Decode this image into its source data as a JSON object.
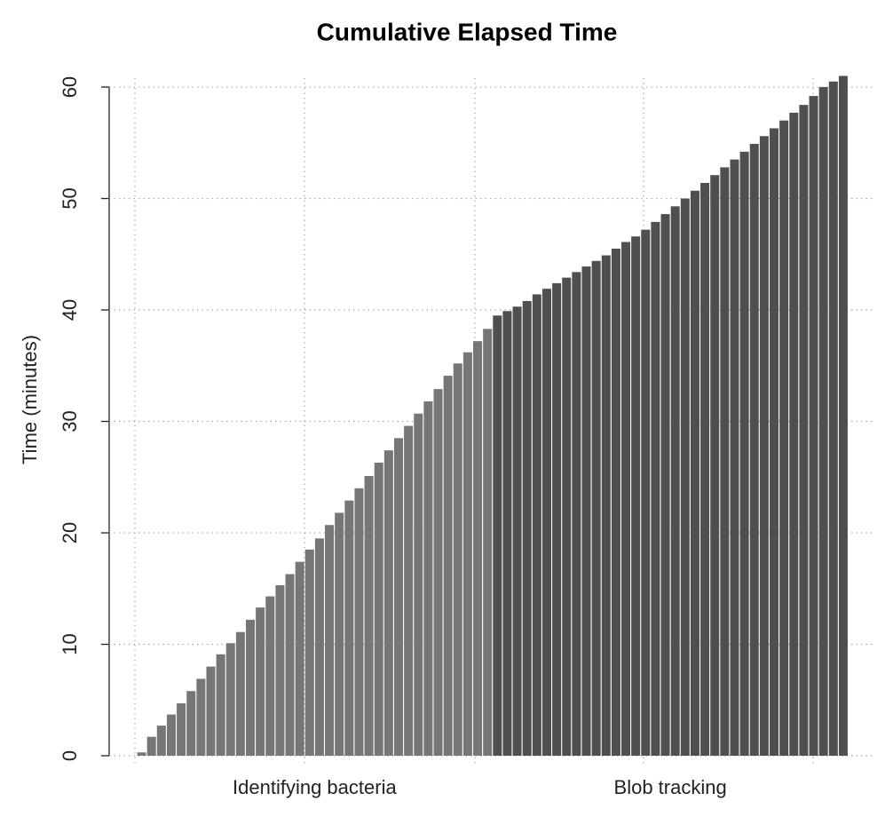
{
  "chart_data": {
    "type": "bar",
    "title": "Cumulative Elapsed Time",
    "y_label": "Time (minutes)",
    "categories": [
      null,
      null,
      null,
      null,
      null,
      null,
      null,
      null,
      null,
      null,
      null,
      null,
      null,
      null,
      null,
      null,
      null,
      null,
      null,
      null,
      null,
      null,
      null,
      null,
      null,
      null,
      null,
      null,
      null,
      null,
      null,
      null,
      null,
      null,
      null,
      null,
      null,
      null,
      null,
      null,
      null,
      null,
      null,
      null,
      null,
      null,
      null,
      null,
      null,
      null,
      null,
      null,
      null,
      null,
      null,
      null,
      null,
      null,
      null,
      null,
      null,
      null,
      null,
      null,
      null,
      null,
      null,
      null,
      null,
      null,
      null,
      null
    ],
    "series": [
      {
        "name": "Identifying bacteria",
        "color": "#767676",
        "values": [
          0.3,
          1.7,
          2.7,
          3.7,
          4.7,
          5.8,
          6.9,
          8.0,
          9.1,
          10.1,
          11.1,
          12.2,
          13.3,
          14.3,
          15.3,
          16.3,
          17.4,
          18.5,
          19.5,
          20.7,
          21.8,
          22.9,
          24.0,
          25.1,
          26.3,
          27.4,
          28.5,
          29.6,
          30.7,
          31.8,
          32.9,
          34.1,
          35.2,
          36.2,
          37.2,
          38.3,
          null,
          null,
          null,
          null,
          null,
          null,
          null,
          null,
          null,
          null,
          null,
          null,
          null,
          null,
          null,
          null,
          null,
          null,
          null,
          null,
          null,
          null,
          null,
          null,
          null,
          null,
          null,
          null,
          null,
          null,
          null,
          null,
          null,
          null,
          null,
          null
        ]
      },
      {
        "name": "Blob tracking",
        "color": "#4f4f4f",
        "values": [
          null,
          null,
          null,
          null,
          null,
          null,
          null,
          null,
          null,
          null,
          null,
          null,
          null,
          null,
          null,
          null,
          null,
          null,
          null,
          null,
          null,
          null,
          null,
          null,
          null,
          null,
          null,
          null,
          null,
          null,
          null,
          null,
          null,
          null,
          null,
          null,
          39.5,
          39.9,
          40.3,
          40.8,
          41.4,
          41.9,
          42.4,
          42.9,
          43.4,
          43.9,
          44.4,
          44.9,
          45.5,
          46.1,
          46.6,
          47.2,
          47.9,
          48.6,
          49.3,
          50.0,
          50.7,
          51.4,
          52.1,
          52.8,
          53.5,
          54.2,
          54.9,
          55.6,
          56.3,
          57.0,
          57.7,
          58.4,
          59.2,
          60.0,
          60.5,
          61.0
        ]
      }
    ],
    "ylim": [
      0,
      61
    ],
    "yticks": [
      0,
      10,
      20,
      30,
      40,
      50,
      60
    ],
    "grid": true
  }
}
